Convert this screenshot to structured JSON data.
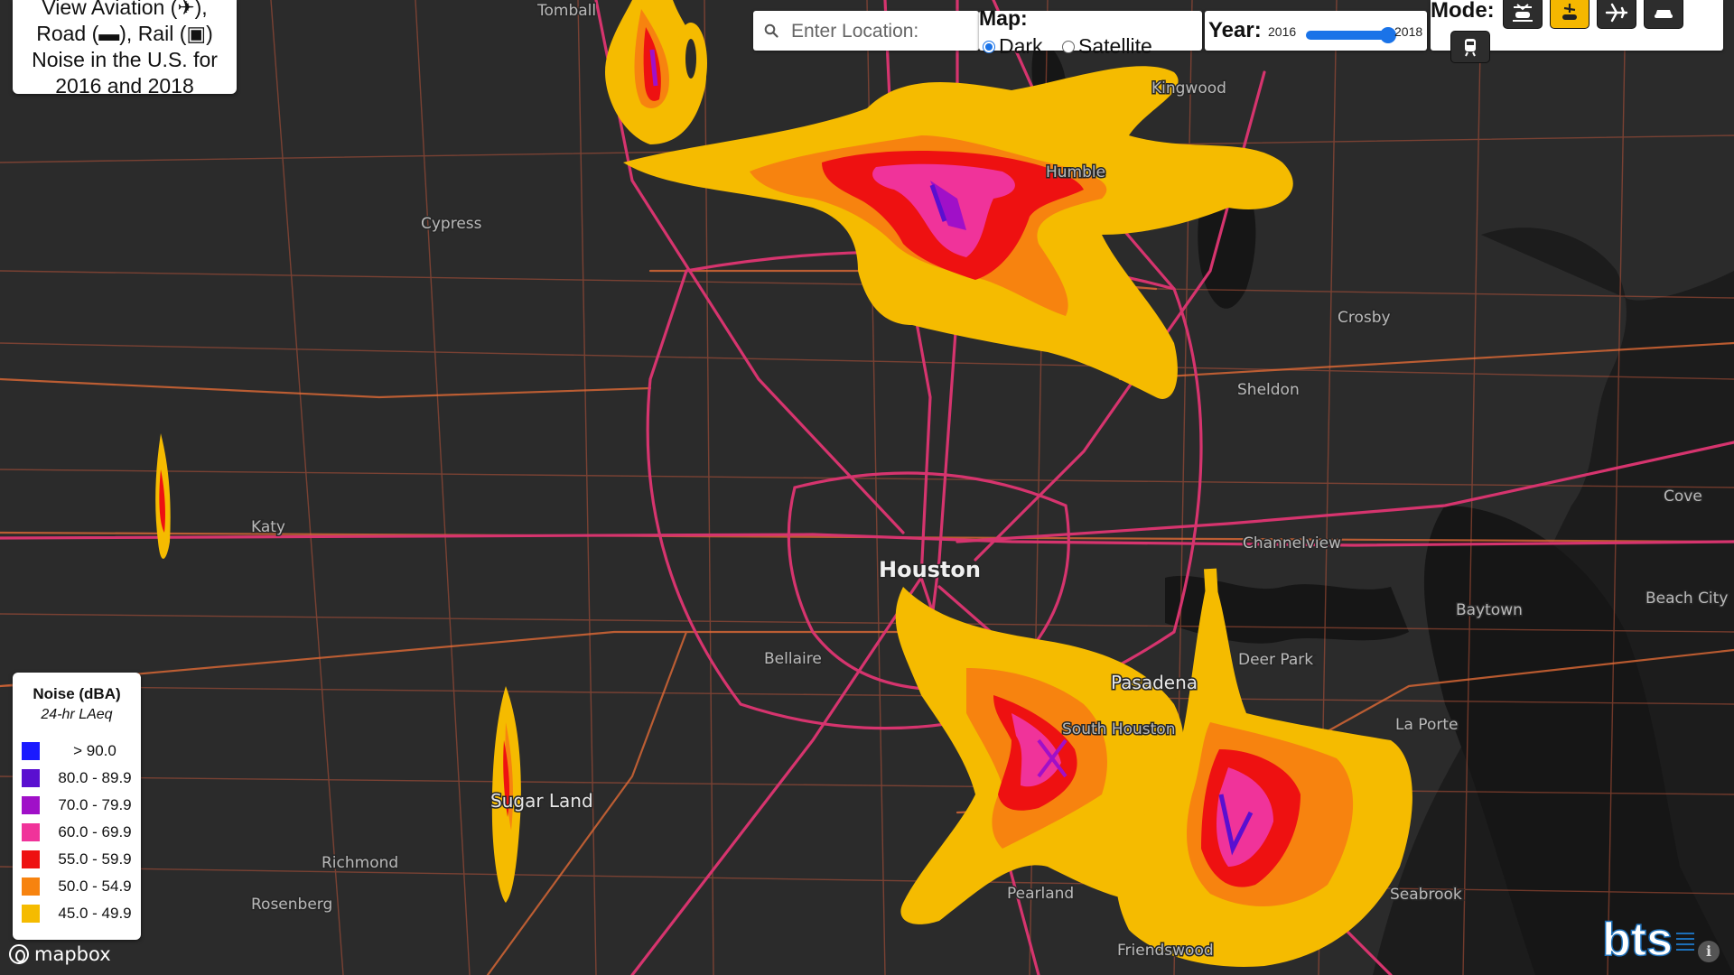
{
  "title": {
    "lines": [
      "View Aviation (✈),",
      "Road (▬), Rail (▣)",
      "Noise in the U.S. for",
      "2016 and 2018"
    ]
  },
  "search": {
    "placeholder": "Enter Location:"
  },
  "map_type": {
    "label": "Map:",
    "options": [
      {
        "label": "Dark",
        "selected": true
      },
      {
        "label": "Satellite",
        "selected": false
      }
    ]
  },
  "year": {
    "label": "Year:",
    "min_label": "2016",
    "max_label": "2018",
    "selected": "2018"
  },
  "mode": {
    "label": "Mode:",
    "buttons": [
      {
        "name": "all-modes",
        "active": false
      },
      {
        "name": "aviation-road",
        "active": true
      },
      {
        "name": "aviation",
        "active": false
      },
      {
        "name": "road",
        "active": false
      },
      {
        "name": "rail",
        "active": false
      }
    ]
  },
  "legend": {
    "title": "Noise (dBA)",
    "subtitle": "24-hr LAeq",
    "items": [
      {
        "label": "> 90.0",
        "color": "#1a1aff"
      },
      {
        "label": "80.0 - 89.9",
        "color": "#5a0fd0"
      },
      {
        "label": "70.0 - 79.9",
        "color": "#a010c8"
      },
      {
        "label": "60.0 - 69.9",
        "color": "#f0339a"
      },
      {
        "label": "55.0 - 59.9",
        "color": "#ee1111"
      },
      {
        "label": "50.0 - 54.9",
        "color": "#f7830f"
      },
      {
        "label": "45.0 - 49.9",
        "color": "#f5bb00"
      }
    ]
  },
  "places": {
    "tomball": "Tomball",
    "kingwood": "Kingwood",
    "humble": "Humble",
    "cypress": "Cypress",
    "crosby": "Crosby",
    "sheldon": "Sheldon",
    "katy": "Katy",
    "cove": "Cove",
    "channelview": "Channelview",
    "houston": "Houston",
    "baytown": "Baytown",
    "beach_city": "Beach City",
    "bellaire": "Bellaire",
    "deer_park": "Deer Park",
    "pasadena": "Pasadena",
    "south_houston": "South Houston",
    "la_porte": "La Porte",
    "sugar_land": "Sugar Land",
    "richmond": "Richmond",
    "rosenberg": "Rosenberg",
    "pearland": "Pearland",
    "seabrook": "Seabrook",
    "friendswood": "Friendswood"
  },
  "attribution": {
    "mapbox": "mapbox",
    "bts": "bts",
    "info": "i"
  },
  "colors": {
    "road_major": "#d6346e",
    "road_minor": "#e0673a",
    "water": "#161616",
    "land": "#2b2b2b"
  }
}
